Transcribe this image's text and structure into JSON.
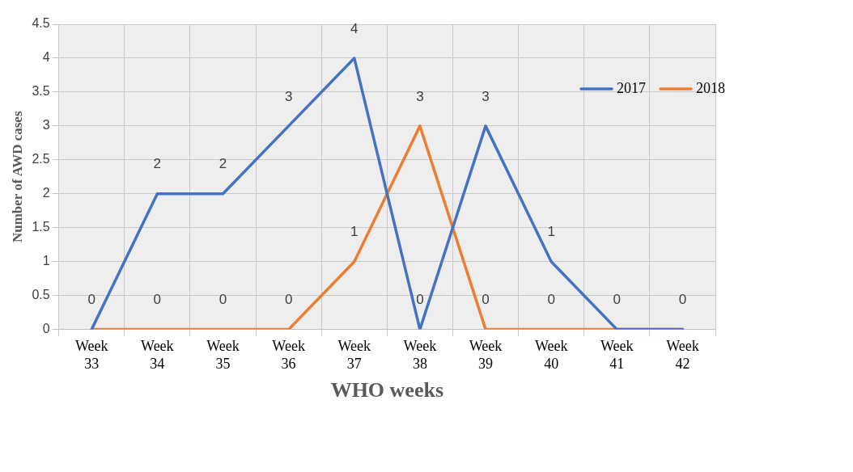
{
  "chart_data": {
    "type": "line",
    "xlabel": "WHO weeks",
    "ylabel": "Number of AWD cases",
    "categories": [
      "Week 33",
      "Week 34",
      "Week 35",
      "Week 36",
      "Week 37",
      "Week 38",
      "Week 39",
      "Week 40",
      "Week 41",
      "Week 42"
    ],
    "series": [
      {
        "name": "2017",
        "color": "#4472c4",
        "values": [
          0,
          2,
          2,
          3,
          4,
          0,
          3,
          1,
          0,
          0
        ],
        "value_labels": [
          "0",
          "2",
          "2",
          "3",
          "4",
          "0",
          "3",
          "1",
          "0",
          "0"
        ]
      },
      {
        "name": "2018",
        "color": "#ed7d31",
        "values": [
          0,
          0,
          0,
          0,
          1,
          3,
          0,
          0,
          0,
          0
        ],
        "value_labels": [
          null,
          "0",
          "0",
          "0",
          "1",
          "3",
          "0",
          "0",
          null,
          null
        ]
      }
    ],
    "ylim": [
      0,
      4.5
    ],
    "yticks": [
      0,
      0.5,
      1,
      1.5,
      2,
      2.5,
      3,
      3.5,
      4,
      4.5
    ],
    "grid": true,
    "legend": "top right",
    "marker": "none",
    "line_style": "solid"
  }
}
